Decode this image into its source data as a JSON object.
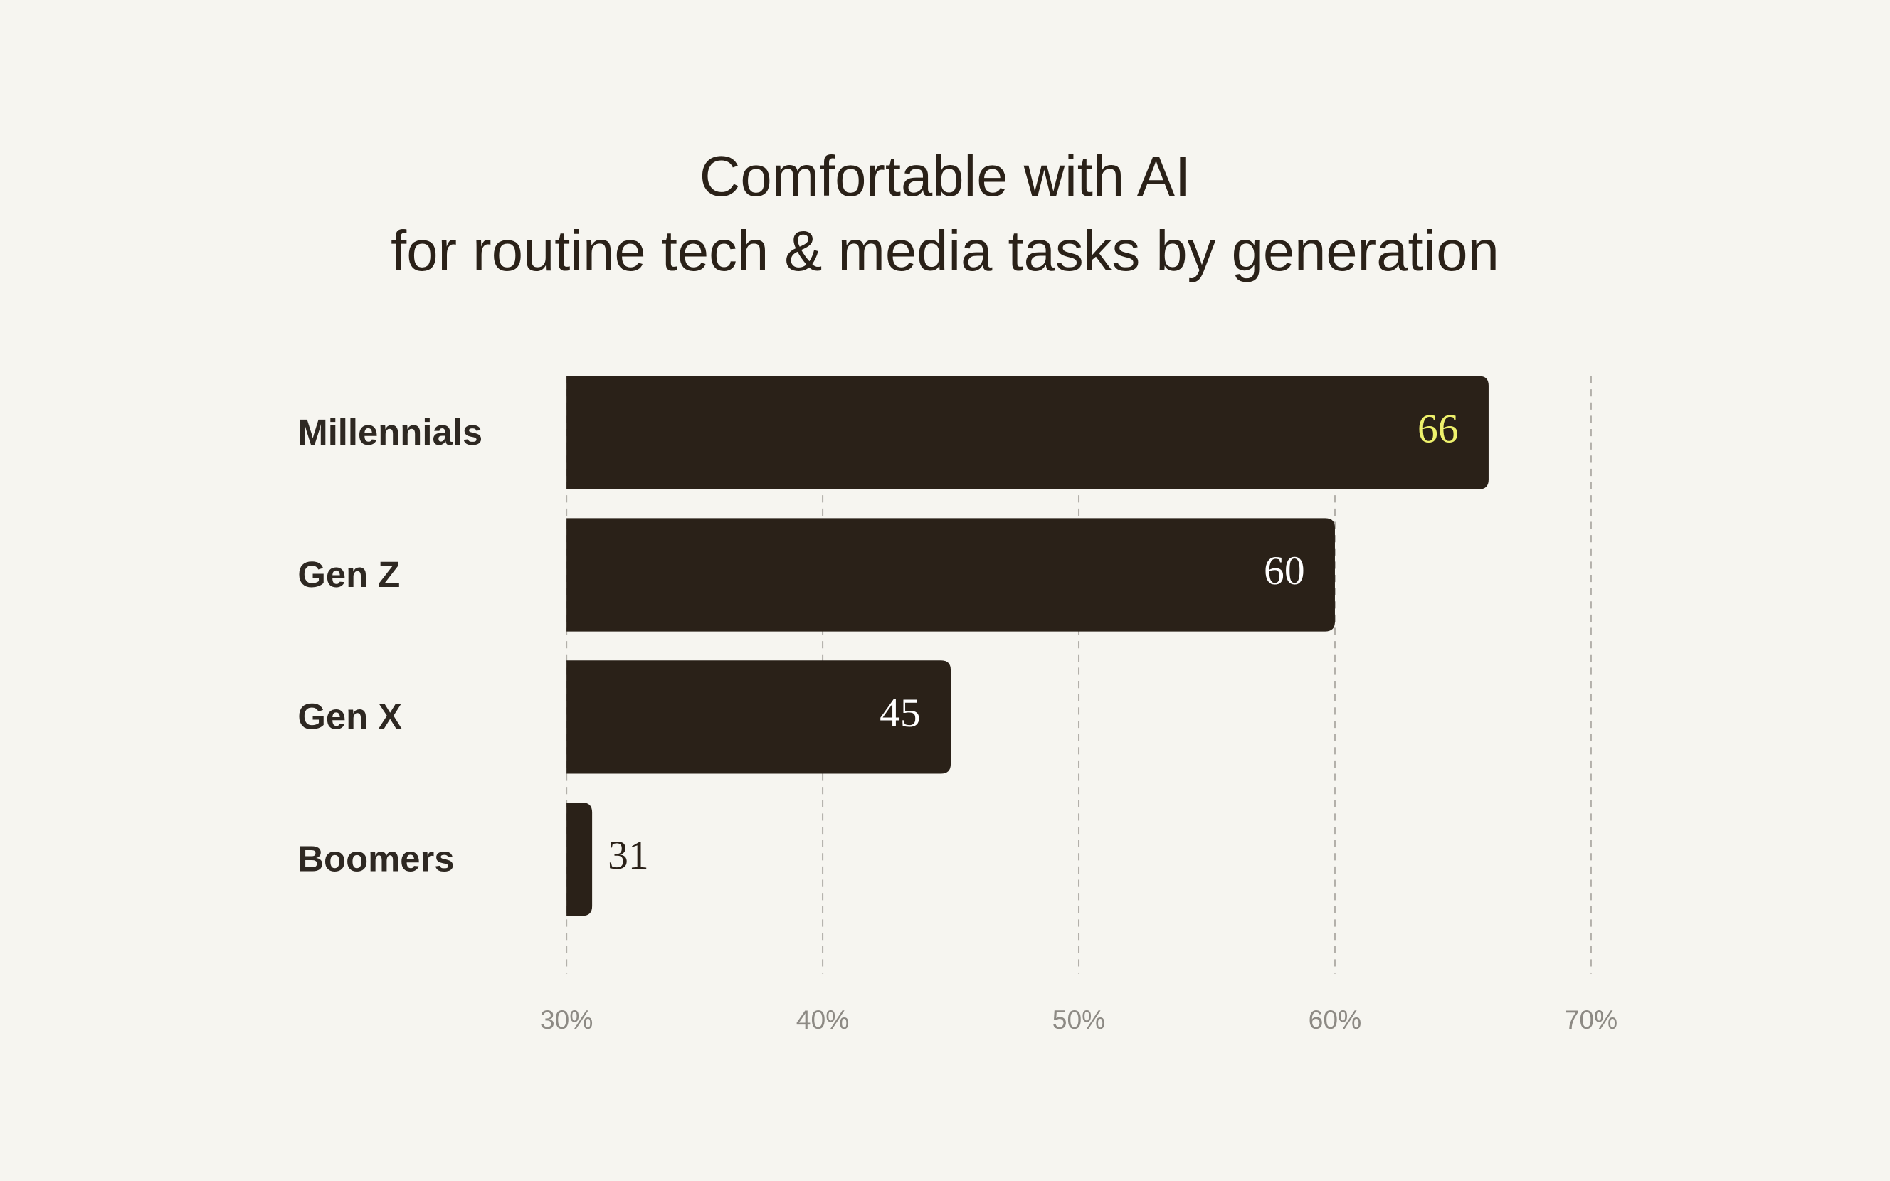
{
  "chart_data": {
    "type": "bar",
    "orientation": "horizontal",
    "title": [
      "Comfortable with AI",
      "for routine tech & media tasks by generation"
    ],
    "categories": [
      "Millennials",
      "Gen Z",
      "Gen X",
      "Boomers"
    ],
    "values": [
      66,
      60,
      45,
      31
    ],
    "color": "#2a2118",
    "value_label_colors": [
      "#eef16c",
      "#ffffff",
      "#ffffff",
      "#2a2118"
    ],
    "xlim": [
      30,
      70
    ],
    "xticks": [
      {
        "value": 30,
        "label": "30%"
      },
      {
        "value": 40,
        "label": "40%"
      },
      {
        "value": 50,
        "label": "50%"
      },
      {
        "value": 60,
        "label": "60%"
      },
      {
        "value": 70,
        "label": "70%"
      }
    ],
    "grid": true
  }
}
